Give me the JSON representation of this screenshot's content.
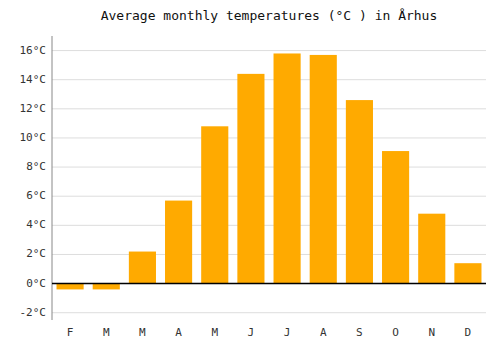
{
  "chart_data": {
    "type": "bar",
    "title": "Average monthly temperatures (°C ) in Århus",
    "categories": [
      "F",
      "M",
      "M",
      "A",
      "M",
      "J",
      "J",
      "A",
      "S",
      "O",
      "N",
      "D"
    ],
    "values": [
      -0.4,
      -0.4,
      2.2,
      5.7,
      10.8,
      14.4,
      15.8,
      15.7,
      12.6,
      9.1,
      4.8,
      1.4
    ],
    "color": "#FFAA00",
    "ylim": [
      -2.5,
      17
    ],
    "yticks": [
      {
        "value": -2,
        "label": "-2°C"
      },
      {
        "value": 0,
        "label": "0°C"
      },
      {
        "value": 2,
        "label": "2°C"
      },
      {
        "value": 4,
        "label": "4°C"
      },
      {
        "value": 6,
        "label": "6°C"
      },
      {
        "value": 8,
        "label": "8°C"
      },
      {
        "value": 10,
        "label": "10°C"
      },
      {
        "value": 12,
        "label": "12°C"
      },
      {
        "value": 14,
        "label": "14°C"
      },
      {
        "value": 16,
        "label": "16°C"
      }
    ],
    "grid": true
  }
}
